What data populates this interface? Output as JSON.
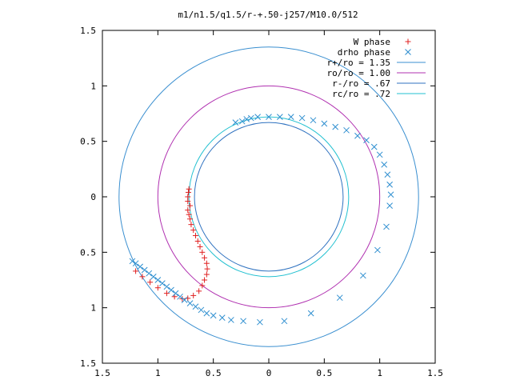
{
  "chart_data": {
    "type": "scatter",
    "title": "m1/n1.5/q1.5/r-+.50-j257/M10.0/512",
    "xlim": [
      -1.5,
      1.5
    ],
    "ylim": [
      -1.5,
      1.5
    ],
    "x_ticks": [
      {
        "value": -1.5,
        "label": "1.5"
      },
      {
        "value": -1.0,
        "label": "1"
      },
      {
        "value": -0.5,
        "label": "0.5"
      },
      {
        "value": 0.0,
        "label": "0"
      },
      {
        "value": 0.5,
        "label": "0.5"
      },
      {
        "value": 1.0,
        "label": "1"
      },
      {
        "value": 1.5,
        "label": "1.5"
      }
    ],
    "y_ticks": [
      {
        "value": 1.5,
        "label": "1.5"
      },
      {
        "value": 1.0,
        "label": "1"
      },
      {
        "value": 0.5,
        "label": "0.5"
      },
      {
        "value": 0.0,
        "label": "0"
      },
      {
        "value": -0.5,
        "label": "0.5"
      },
      {
        "value": -1.0,
        "label": "1"
      },
      {
        "value": -1.5,
        "label": "1.5"
      }
    ],
    "grid": false,
    "legend_position": "top-right",
    "circles": [
      {
        "name": "r+/ro = 1.35",
        "radius": 1.35,
        "color": "#3a8fd0"
      },
      {
        "name": "ro/ro = 1.00",
        "radius": 1.0,
        "color": "#b030b0"
      },
      {
        "name": "r-/ro = .67",
        "radius": 0.67,
        "color": "#2f72c0"
      },
      {
        "name": "rc/ro = .72",
        "radius": 0.72,
        "color": "#20c0d0"
      }
    ],
    "series": [
      {
        "name": "W phase",
        "marker": "+",
        "color": "#e02020",
        "points": [
          [
            -0.72,
            0.07
          ],
          [
            -0.725,
            0.04
          ],
          [
            -0.73,
            0.0
          ],
          [
            -0.73,
            -0.04
          ],
          [
            -0.71,
            -0.08
          ],
          [
            -0.73,
            -0.12
          ],
          [
            -0.72,
            -0.16
          ],
          [
            -0.71,
            -0.2
          ],
          [
            -0.7,
            -0.25
          ],
          [
            -0.68,
            -0.3
          ],
          [
            -0.66,
            -0.35
          ],
          [
            -0.64,
            -0.4
          ],
          [
            -0.62,
            -0.45
          ],
          [
            -0.6,
            -0.5
          ],
          [
            -0.58,
            -0.55
          ],
          [
            -0.56,
            -0.6
          ],
          [
            -0.555,
            -0.65
          ],
          [
            -0.56,
            -0.7
          ],
          [
            -0.58,
            -0.75
          ],
          [
            -0.6,
            -0.8
          ],
          [
            -0.63,
            -0.85
          ],
          [
            -0.68,
            -0.89
          ],
          [
            -0.73,
            -0.915
          ],
          [
            -0.78,
            -0.92
          ],
          [
            -0.85,
            -0.9
          ],
          [
            -0.92,
            -0.87
          ],
          [
            -1.0,
            -0.82
          ],
          [
            -1.07,
            -0.77
          ],
          [
            -1.14,
            -0.72
          ],
          [
            -1.2,
            -0.67
          ]
        ]
      },
      {
        "name": "drho phase",
        "marker": "x",
        "color": "#2f8fd0",
        "points": [
          [
            -1.23,
            -0.58
          ],
          [
            -1.2,
            -0.6
          ],
          [
            -1.16,
            -0.63
          ],
          [
            -1.12,
            -0.66
          ],
          [
            -1.08,
            -0.69
          ],
          [
            -1.04,
            -0.72
          ],
          [
            -1.0,
            -0.75
          ],
          [
            -0.96,
            -0.78
          ],
          [
            -0.92,
            -0.81
          ],
          [
            -0.88,
            -0.84
          ],
          [
            -0.84,
            -0.87
          ],
          [
            -0.8,
            -0.9
          ],
          [
            -0.76,
            -0.93
          ],
          [
            -0.71,
            -0.96
          ],
          [
            -0.66,
            -0.99
          ],
          [
            -0.61,
            -1.02
          ],
          [
            -0.56,
            -1.05
          ],
          [
            -0.5,
            -1.07
          ],
          [
            -0.42,
            -1.09
          ],
          [
            -0.34,
            -1.11
          ],
          [
            -0.23,
            -1.12
          ],
          [
            -0.08,
            -1.13
          ],
          [
            0.14,
            -1.12
          ],
          [
            0.38,
            -1.05
          ],
          [
            0.64,
            -0.91
          ],
          [
            0.85,
            -0.71
          ],
          [
            0.98,
            -0.48
          ],
          [
            1.06,
            -0.27
          ],
          [
            1.09,
            -0.08
          ],
          [
            1.1,
            0.02
          ],
          [
            1.09,
            0.11
          ],
          [
            1.07,
            0.2
          ],
          [
            1.04,
            0.29
          ],
          [
            1.0,
            0.38
          ],
          [
            0.95,
            0.45
          ],
          [
            0.88,
            0.51
          ],
          [
            0.8,
            0.55
          ],
          [
            0.7,
            0.6
          ],
          [
            0.6,
            0.63
          ],
          [
            0.5,
            0.66
          ],
          [
            0.4,
            0.69
          ],
          [
            0.3,
            0.71
          ],
          [
            0.2,
            0.72
          ],
          [
            0.1,
            0.72
          ],
          [
            0.0,
            0.72
          ],
          [
            -0.1,
            0.72
          ],
          [
            -0.2,
            0.7
          ],
          [
            -0.3,
            0.67
          ],
          [
            -0.24,
            0.68
          ],
          [
            -0.16,
            0.71
          ]
        ]
      }
    ]
  }
}
